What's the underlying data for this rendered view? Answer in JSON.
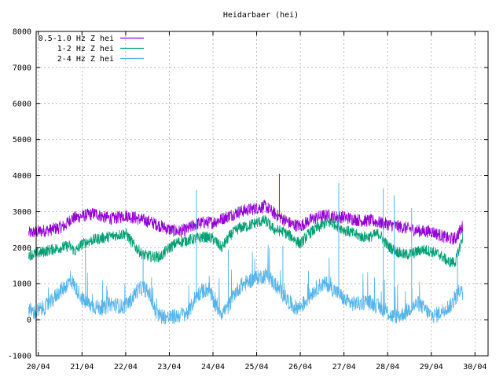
{
  "chart_data": {
    "type": "line",
    "title": "Heidarbaer (hei)",
    "xlabel": "",
    "ylabel": "",
    "xlim": [
      -0.05,
      10.3
    ],
    "ylim": [
      -1000,
      8000
    ],
    "y_ticks": [
      -1000,
      0,
      1000,
      2000,
      3000,
      4000,
      5000,
      6000,
      7000,
      8000
    ],
    "x_ticks": [
      {
        "value": 0,
        "label": "20/04"
      },
      {
        "value": 1,
        "label": "21/04"
      },
      {
        "value": 2,
        "label": "22/04"
      },
      {
        "value": 3,
        "label": "23/04"
      },
      {
        "value": 4,
        "label": "24/04"
      },
      {
        "value": 5,
        "label": "25/04"
      },
      {
        "value": 6,
        "label": "26/04"
      },
      {
        "value": 7,
        "label": "27/04"
      },
      {
        "value": 8,
        "label": "28/04"
      },
      {
        "value": 9,
        "label": "29/04"
      },
      {
        "value": 10,
        "label": "30/04"
      }
    ],
    "grid": true,
    "legend_position": "top-left",
    "series": [
      {
        "name": "0.5-1.0 Hz Z hei",
        "color": "#9400d3",
        "band": 180,
        "x": [
          -0.22,
          0.0,
          0.3,
          0.6,
          0.75,
          0.9,
          1.1,
          1.3,
          1.5,
          1.7,
          2.0,
          2.3,
          2.6,
          2.8,
          3.0,
          3.2,
          3.4,
          3.6,
          3.8,
          4.0,
          4.2,
          4.4,
          4.6,
          4.8,
          5.0,
          5.2,
          5.4,
          5.6,
          5.8,
          6.0,
          6.2,
          6.4,
          6.6,
          6.8,
          7.0,
          7.2,
          7.4,
          7.6,
          7.8,
          8.0,
          8.2,
          8.4,
          8.6,
          8.8,
          9.0,
          9.2,
          9.4,
          9.55,
          9.72
        ],
        "y": [
          2400,
          2450,
          2500,
          2600,
          2800,
          2850,
          2900,
          2950,
          2850,
          2800,
          2900,
          2800,
          2700,
          2600,
          2500,
          2450,
          2500,
          2650,
          2700,
          2700,
          2800,
          2900,
          3000,
          3050,
          3100,
          3150,
          2950,
          2800,
          2650,
          2600,
          2750,
          2850,
          2900,
          2850,
          2850,
          2800,
          2750,
          2750,
          2700,
          2650,
          2600,
          2550,
          2500,
          2450,
          2450,
          2350,
          2250,
          2250,
          2600
        ]
      },
      {
        "name": "1-2 Hz Z hei",
        "color": "#009e73",
        "band": 160,
        "x": [
          -0.22,
          0.0,
          0.3,
          0.5,
          0.7,
          0.85,
          1.0,
          1.2,
          1.4,
          1.6,
          1.8,
          2.0,
          2.2,
          2.4,
          2.6,
          2.8,
          3.0,
          3.2,
          3.4,
          3.6,
          3.8,
          4.0,
          4.2,
          4.4,
          4.6,
          4.8,
          5.0,
          5.2,
          5.4,
          5.6,
          5.8,
          6.0,
          6.2,
          6.4,
          6.6,
          6.8,
          7.0,
          7.2,
          7.4,
          7.6,
          7.8,
          8.0,
          8.2,
          8.4,
          8.6,
          8.8,
          9.0,
          9.2,
          9.4,
          9.55,
          9.72
        ],
        "y": [
          1800,
          1850,
          1950,
          2000,
          2050,
          1900,
          2100,
          2200,
          2250,
          2300,
          2350,
          2400,
          2050,
          1800,
          1750,
          1750,
          2000,
          2150,
          2200,
          2250,
          2300,
          2250,
          2000,
          2350,
          2550,
          2600,
          2700,
          2750,
          2500,
          2450,
          2300,
          2100,
          2400,
          2550,
          2700,
          2650,
          2500,
          2400,
          2300,
          2300,
          2400,
          2050,
          1900,
          1800,
          1850,
          1950,
          1900,
          1800,
          1600,
          1600,
          2300
        ]
      },
      {
        "name": "2-4 Hz Z hei",
        "color": "#56b4e9",
        "band": 220,
        "x": [
          -0.22,
          -0.1,
          0.0,
          0.15,
          0.3,
          0.45,
          0.6,
          0.75,
          0.9,
          1.05,
          1.2,
          1.35,
          1.5,
          1.65,
          1.8,
          1.95,
          2.1,
          2.25,
          2.4,
          2.55,
          2.7,
          2.85,
          3.0,
          3.15,
          3.3,
          3.45,
          3.6,
          3.75,
          3.9,
          4.05,
          4.2,
          4.35,
          4.5,
          4.65,
          4.8,
          4.95,
          5.1,
          5.25,
          5.4,
          5.55,
          5.7,
          5.85,
          6.0,
          6.15,
          6.3,
          6.45,
          6.6,
          6.75,
          6.9,
          7.05,
          7.2,
          7.35,
          7.5,
          7.65,
          7.8,
          7.95,
          8.1,
          8.25,
          8.4,
          8.55,
          8.7,
          8.85,
          9.0,
          9.15,
          9.3,
          9.45,
          9.55,
          9.65,
          9.72
        ],
        "y": [
          300,
          200,
          250,
          350,
          500,
          750,
          900,
          1100,
          800,
          500,
          400,
          350,
          300,
          450,
          400,
          350,
          500,
          800,
          900,
          700,
          150,
          100,
          50,
          100,
          150,
          200,
          650,
          800,
          850,
          400,
          200,
          350,
          750,
          950,
          1050,
          1150,
          1200,
          1250,
          1000,
          800,
          550,
          350,
          350,
          550,
          800,
          950,
          1000,
          850,
          700,
          500,
          450,
          450,
          500,
          450,
          350,
          250,
          100,
          100,
          200,
          350,
          450,
          300,
          100,
          150,
          300,
          400,
          600,
          800,
          700
        ]
      }
    ],
    "spikes": [
      {
        "series": "0.5-1.0 Hz Z hei",
        "x": 5.52,
        "y": 4050
      },
      {
        "series": "1-2 Hz Z hei",
        "x": 6.0,
        "y": 2250
      },
      {
        "series": "2-4 Hz Z hei",
        "x": 3.62,
        "y": 3600
      },
      {
        "series": "2-4 Hz Z hei",
        "x": 1.08,
        "y": 1950
      },
      {
        "series": "2-4 Hz Z hei",
        "x": 6.88,
        "y": 3800
      },
      {
        "series": "2-4 Hz Z hei",
        "x": 7.9,
        "y": 3650
      },
      {
        "series": "2-4 Hz Z hei",
        "x": 8.15,
        "y": 3450
      },
      {
        "series": "2-4 Hz Z hei",
        "x": 8.55,
        "y": 3100
      },
      {
        "series": "2-4 Hz Z hei",
        "x": 4.35,
        "y": 1950
      },
      {
        "series": "2-4 Hz Z hei",
        "x": 5.6,
        "y": 2050
      },
      {
        "series": "2-4 Hz Z hei",
        "x": 2.4,
        "y": 1800
      },
      {
        "series": "2-4 Hz Z hei",
        "x": 9.6,
        "y": 1900
      }
    ]
  }
}
